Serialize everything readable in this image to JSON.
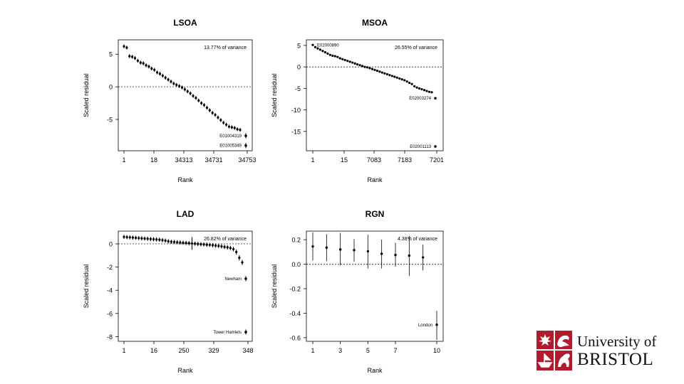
{
  "chart_data": [
    {
      "id": "lsoa",
      "type": "scatter",
      "title": "LSOA",
      "xlabel": "Rank",
      "ylabel": "Scaled residual",
      "annotation": "13.77% of variance",
      "ylim": [
        -9.8,
        7.2
      ],
      "yticks": [
        5,
        0,
        -5
      ],
      "xtick_labels": [
        "1",
        "18",
        "34313",
        "34731",
        "34753"
      ],
      "reference_line": 0,
      "points": [
        6.2,
        6.0,
        4.7,
        4.6,
        4.4,
        4.0,
        3.7,
        3.6,
        3.3,
        3.1,
        2.8,
        2.6,
        2.2,
        2.0,
        1.7,
        1.4,
        1.1,
        0.8,
        0.5,
        0.3,
        0.1,
        -0.1,
        -0.4,
        -0.7,
        -1.0,
        -1.4,
        -1.7,
        -2.1,
        -2.5,
        -2.8,
        -3.2,
        -3.6,
        -4.0,
        -4.3,
        -4.7,
        -5.1,
        -5.5,
        -5.8,
        -6.1,
        -6.2,
        -6.3,
        -6.5,
        -6.6
      ],
      "error": [
        0.3,
        0.3,
        0.3,
        0.3,
        0.3,
        0.3,
        0.3,
        0.3,
        0.3,
        0.3,
        0.3,
        0.3,
        0.3,
        0.3,
        0.3,
        0.3,
        0.3,
        0.3,
        0.3,
        0.3,
        0.3,
        0.3,
        0.3,
        0.3,
        0.3,
        0.3,
        0.3,
        0.3,
        0.3,
        0.3,
        0.3,
        0.3,
        0.3,
        0.3,
        0.3,
        0.3,
        0.3,
        0.3,
        0.3,
        0.3,
        0.3,
        0.3,
        0.3
      ],
      "outliers": [
        {
          "label": "E01004319",
          "value": -7.5,
          "error": 0.4
        },
        {
          "label": "E01005349",
          "value": -9.0,
          "error": 0.4
        }
      ]
    },
    {
      "id": "msoa",
      "type": "scatter",
      "title": "MSOA",
      "xlabel": "Rank",
      "ylabel": "Scaled residual",
      "annotation": "26.55% of variance",
      "ylim": [
        -19.5,
        6.3
      ],
      "yticks": [
        5,
        0,
        -5,
        -10,
        -15
      ],
      "xtick_labels": [
        "1",
        "15",
        "7083",
        "7183",
        "7201"
      ],
      "reference_line": 0,
      "first_label": "E02000890",
      "points": [
        5.1,
        4.6,
        4.3,
        4.0,
        3.7,
        3.4,
        3.1,
        2.8,
        2.6,
        2.5,
        2.3,
        2.0,
        1.8,
        1.6,
        1.4,
        1.2,
        1.0,
        0.8,
        0.6,
        0.4,
        0.2,
        0.0,
        -0.1,
        -0.3,
        -0.5,
        -0.7,
        -0.9,
        -1.1,
        -1.3,
        -1.5,
        -1.7,
        -1.9,
        -2.1,
        -2.3,
        -2.5,
        -2.7,
        -2.9,
        -3.1,
        -3.4,
        -3.7,
        -4.0,
        -4.5,
        -4.8,
        -5.0,
        -5.2,
        -5.4,
        -5.6,
        -5.8,
        -5.9
      ],
      "outliers": [
        {
          "label": "E02003274",
          "value": -7.3
        },
        {
          "label": "E02001113",
          "value": -18.5
        }
      ]
    },
    {
      "id": "lad",
      "type": "scatter",
      "title": "LAD",
      "xlabel": "Rank",
      "ylabel": "Scaled residual",
      "annotation": "26.82% of variance",
      "ylim": [
        -8.4,
        1.1
      ],
      "yticks": [
        0,
        -2,
        -4,
        -6,
        -8
      ],
      "xtick_labels": [
        "1",
        "16",
        "250",
        "329",
        "348"
      ],
      "reference_line": 0,
      "points": [
        0.6,
        0.58,
        0.56,
        0.54,
        0.52,
        0.5,
        0.48,
        0.46,
        0.44,
        0.42,
        0.4,
        0.38,
        0.36,
        0.32,
        0.28,
        0.22,
        0.18,
        0.16,
        0.14,
        0.12,
        0.1,
        0.08,
        0.06,
        0.04,
        0.02,
        -0.01,
        -0.03,
        -0.05,
        -0.07,
        -0.09,
        -0.12,
        -0.15,
        -0.18,
        -0.22,
        -0.26,
        -0.3,
        -0.36,
        -0.45,
        -0.7,
        -1.2,
        -1.6
      ],
      "error": [
        0.18,
        0.18,
        0.18,
        0.18,
        0.18,
        0.18,
        0.18,
        0.18,
        0.18,
        0.18,
        0.18,
        0.18,
        0.18,
        0.18,
        0.18,
        0.18,
        0.18,
        0.18,
        0.18,
        0.18,
        0.18,
        0.18,
        0.18,
        0.55,
        0.18,
        0.18,
        0.18,
        0.18,
        0.18,
        0.18,
        0.18,
        0.18,
        0.18,
        0.18,
        0.18,
        0.18,
        0.18,
        0.2,
        0.22,
        0.22,
        0.22
      ],
      "outliers": [
        {
          "label": "Newham",
          "value": -3.0,
          "error": 0.22
        },
        {
          "label": "Tower Hamlets",
          "value": -7.6,
          "error": 0.22
        }
      ]
    },
    {
      "id": "rgn",
      "type": "scatter",
      "title": "RGN",
      "xlabel": "Rank",
      "ylabel": "Scaled residual",
      "annotation": "4.38% of variance",
      "ylim": [
        -0.63,
        0.27
      ],
      "yticks": [
        0.2,
        0.0,
        -0.2,
        -0.4,
        -0.6
      ],
      "ytick_labels": [
        "0.2",
        "0.0",
        "-0.2",
        "-0.4",
        "-0.6"
      ],
      "xlim": [
        1,
        10
      ],
      "xticks": [
        1,
        3,
        5,
        7,
        10
      ],
      "reference_line": 0,
      "points": [
        {
          "x": 1,
          "y": 0.145,
          "lo": 0.03,
          "hi": 0.26
        },
        {
          "x": 2,
          "y": 0.135,
          "lo": 0.025,
          "hi": 0.245
        },
        {
          "x": 3,
          "y": 0.12,
          "lo": -0.01,
          "hi": 0.255
        },
        {
          "x": 4,
          "y": 0.115,
          "lo": 0.02,
          "hi": 0.205
        },
        {
          "x": 5,
          "y": 0.105,
          "lo": -0.035,
          "hi": 0.24
        },
        {
          "x": 6,
          "y": 0.085,
          "lo": -0.035,
          "hi": 0.2
        },
        {
          "x": 7,
          "y": 0.075,
          "lo": -0.02,
          "hi": 0.175
        },
        {
          "x": 8,
          "y": 0.07,
          "lo": -0.095,
          "hi": 0.23
        },
        {
          "x": 9,
          "y": 0.055,
          "lo": -0.05,
          "hi": 0.16
        }
      ],
      "outliers": [
        {
          "label": "London",
          "x": 10,
          "value": -0.495,
          "lo": -0.62,
          "hi": -0.38
        }
      ]
    }
  ],
  "logo": {
    "line1": "University of",
    "line2": "BRISTOL",
    "color": "#b01c2e"
  }
}
